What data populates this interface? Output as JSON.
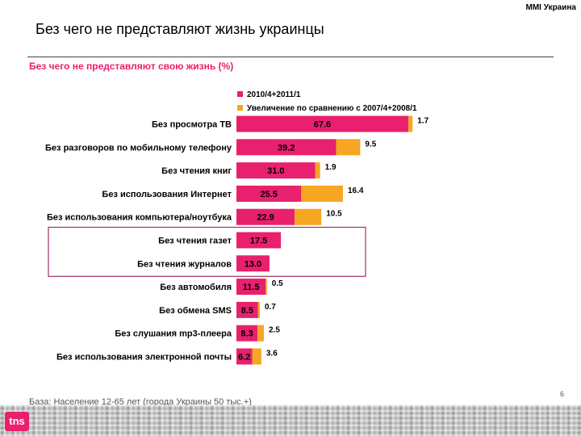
{
  "header": {
    "brand": "MMI Украина",
    "title": "Без чего не представляют жизнь украинцы",
    "subtitle": "Без чего не представляют свою жизнь (%)"
  },
  "colors": {
    "accent": "#e8206e",
    "increase": "#f5a623",
    "highlight_box": "#a0306a"
  },
  "chart_data": {
    "type": "bar",
    "orientation": "horizontal",
    "stacked": true,
    "title": "Без чего не представляют свою жизнь (%)",
    "legend": {
      "placement": "top-right"
    },
    "categories": [
      "Без просмотра ТВ",
      "Без разговоров по мобильному телефону",
      "Без чтения книг",
      "Без использования Интернет",
      "Без использования компьютера/ноутбука",
      "Без чтения газет",
      "Без чтения журналов",
      "Без автомобиля",
      "Без обмена SMS",
      "Без слушания mp3-плеера",
      "Без использования электронной почты"
    ],
    "series": [
      {
        "name": "2010/4+2011/1",
        "values": [
          67.6,
          39.2,
          31.0,
          25.5,
          22.9,
          17.5,
          13.0,
          11.5,
          8.5,
          8.3,
          6.2
        ]
      },
      {
        "name": "Увеличение по сравнению с  2007/4+2008/1",
        "values": [
          1.7,
          9.5,
          1.9,
          16.4,
          10.5,
          null,
          null,
          0.5,
          0.7,
          2.5,
          3.6
        ]
      }
    ],
    "value_labels": {
      "main": [
        "67.6",
        "39.2",
        "31.0",
        "25.5",
        "22.9",
        "17.5",
        "13.0",
        "11.5",
        "8.5",
        "8.3",
        "6.2"
      ],
      "increase": [
        "1.7",
        "9.5",
        "1.9",
        "16.4",
        "10.5",
        "",
        "",
        "0.5",
        "0.7",
        "2.5",
        "3.6"
      ]
    },
    "highlighted_categories": [
      "Без чтения газет",
      "Без чтения журналов"
    ],
    "xlim": [
      0,
      70
    ]
  },
  "footer": {
    "base_note": "База: Население 12-65 лет (города Украины 50 тыс.+)",
    "page_number": "6",
    "logo_text": "tns"
  }
}
